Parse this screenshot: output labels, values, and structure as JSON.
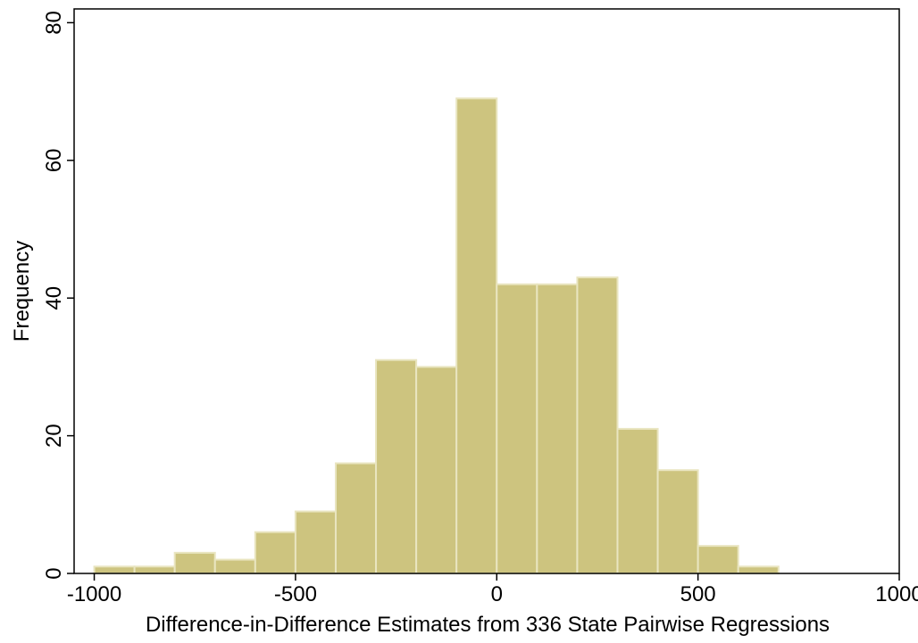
{
  "chart_data": {
    "type": "bar",
    "xlabel": "Difference-in-Difference Estimates from 336 State Pairwise Regressions",
    "ylabel": "Frequency",
    "xlim": [
      -1050,
      1000
    ],
    "ylim": [
      0,
      82
    ],
    "xticks": [
      -1000,
      -500,
      0,
      500,
      1000
    ],
    "yticks": [
      0,
      20,
      40,
      60,
      80
    ],
    "bin_width": 100,
    "bins": [
      {
        "start": -1000,
        "end": -900,
        "count": 1
      },
      {
        "start": -900,
        "end": -800,
        "count": 1
      },
      {
        "start": -800,
        "end": -700,
        "count": 3
      },
      {
        "start": -700,
        "end": -600,
        "count": 2
      },
      {
        "start": -600,
        "end": -500,
        "count": 6
      },
      {
        "start": -500,
        "end": -400,
        "count": 9
      },
      {
        "start": -400,
        "end": -300,
        "count": 16
      },
      {
        "start": -300,
        "end": -200,
        "count": 31
      },
      {
        "start": -200,
        "end": -100,
        "count": 30
      },
      {
        "start": -100,
        "end": 0,
        "count": 69
      },
      {
        "start": 0,
        "end": 100,
        "count": 42
      },
      {
        "start": 100,
        "end": 200,
        "count": 42
      },
      {
        "start": 200,
        "end": 300,
        "count": 43
      },
      {
        "start": 300,
        "end": 400,
        "count": 21
      },
      {
        "start": 400,
        "end": 500,
        "count": 15
      },
      {
        "start": 500,
        "end": 600,
        "count": 4
      },
      {
        "start": 600,
        "end": 700,
        "count": 1
      }
    ],
    "grid": false,
    "legend": "none",
    "colors": {
      "bar_fill": "#cdc47f",
      "bar_edge": "#e9e5c0"
    }
  }
}
